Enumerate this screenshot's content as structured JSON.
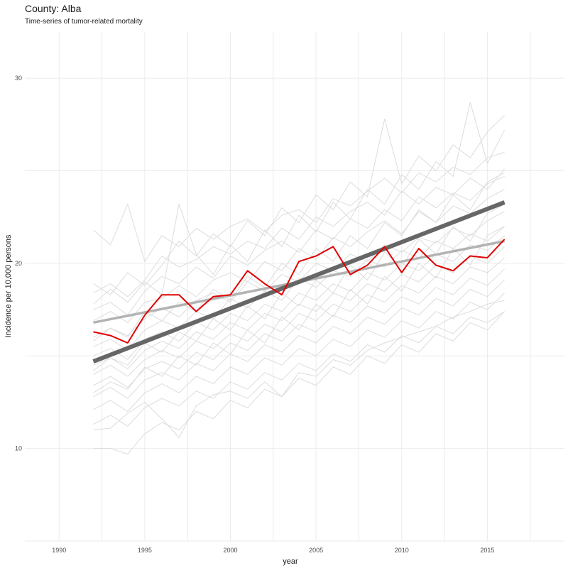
{
  "chart_data": {
    "type": "line",
    "title": "County: Alba",
    "subtitle": "Time-series of tumor-related mortality",
    "xlabel": "year",
    "ylabel": "Incidence per 10,000 persons",
    "xlim": [
      1988,
      2019.5
    ],
    "ylim": [
      5,
      32.5
    ],
    "xticks": [
      1990,
      1995,
      2000,
      2005,
      2010,
      2015
    ],
    "yticks": [
      10,
      20,
      30
    ],
    "grid": true,
    "colors": {
      "highlight": "#e00000",
      "trend_main": "#666666",
      "trend_light": "#b3b3b3",
      "background_series": "#dcdcdc",
      "grid": "#ebebeb"
    },
    "highlight_series": {
      "x": [
        1992,
        1993,
        1994,
        1995,
        1996,
        1997,
        1998,
        1999,
        2000,
        2001,
        2002,
        2003,
        2004,
        2005,
        2006,
        2007,
        2008,
        2009,
        2010,
        2011,
        2012,
        2013,
        2014,
        2015,
        2016
      ],
      "values": [
        16.3,
        16.1,
        15.7,
        17.2,
        18.3,
        18.3,
        17.4,
        18.2,
        18.3,
        19.6,
        18.9,
        18.3,
        20.1,
        20.4,
        20.9,
        19.4,
        19.9,
        20.9,
        19.5,
        20.8,
        19.9,
        19.6,
        20.4,
        20.3,
        21.3
      ]
    },
    "trend_main": {
      "x": [
        1992,
        2016
      ],
      "values": [
        14.7,
        23.3
      ]
    },
    "trend_light": {
      "x": [
        1992,
        2016
      ],
      "values": [
        16.8,
        21.2
      ]
    },
    "background_series": [
      {
        "x_start": 1992,
        "values": [
          21.8,
          21.0,
          23.2,
          20.1,
          21.5,
          20.9,
          21.9,
          21.3,
          22.0,
          22.4,
          21.7,
          22.6,
          22.9,
          22.2,
          23.5,
          23.1,
          23.9,
          24.6,
          23.8,
          24.9,
          24.4,
          25.2,
          24.8,
          25.7,
          26.0
        ]
      },
      {
        "x_start": 1992,
        "values": [
          18.4,
          18.9,
          18.2,
          19.1,
          20.4,
          19.8,
          20.2,
          20.9,
          20.5,
          21.2,
          20.8,
          21.9,
          21.3,
          22.5,
          22.0,
          22.8,
          23.3,
          22.6,
          23.9,
          23.2,
          24.1,
          23.7,
          24.6,
          24.0,
          25.1
        ]
      },
      {
        "x_start": 1992,
        "values": [
          17.5,
          17.9,
          17.2,
          18.5,
          19.3,
          18.9,
          19.8,
          19.2,
          20.4,
          19.9,
          20.7,
          21.2,
          20.6,
          21.8,
          21.3,
          22.4,
          21.9,
          22.9,
          22.3,
          23.6,
          23.0,
          23.8,
          23.4,
          24.3,
          24.7
        ]
      },
      {
        "x_start": 1992,
        "values": [
          16.9,
          17.4,
          16.8,
          17.9,
          18.1,
          18.8,
          18.2,
          19.1,
          19.5,
          19.0,
          20.1,
          19.6,
          20.8,
          20.2,
          21.4,
          20.9,
          21.7,
          22.3,
          21.6,
          22.8,
          22.2,
          23.1,
          22.7,
          23.5,
          24.0
        ]
      },
      {
        "x_start": 1992,
        "values": [
          16.0,
          16.5,
          16.1,
          17.0,
          17.6,
          17.1,
          18.0,
          18.4,
          17.9,
          19.0,
          18.5,
          19.4,
          19.0,
          20.0,
          19.6,
          20.5,
          20.1,
          21.0,
          20.6,
          21.4,
          21.1,
          21.9,
          21.5,
          22.3,
          22.8
        ]
      },
      {
        "x_start": 1992,
        "values": [
          15.5,
          15.9,
          15.3,
          16.4,
          16.9,
          16.5,
          17.4,
          17.0,
          18.1,
          17.6,
          18.5,
          18.0,
          19.2,
          18.7,
          19.6,
          19.3,
          20.2,
          19.8,
          20.7,
          20.3,
          21.2,
          20.8,
          21.6,
          21.2,
          22.0
        ]
      },
      {
        "x_start": 1992,
        "values": [
          15.0,
          15.4,
          14.8,
          15.9,
          16.3,
          15.8,
          16.8,
          16.4,
          17.3,
          16.9,
          17.8,
          17.4,
          18.4,
          18.0,
          18.9,
          18.5,
          19.5,
          19.1,
          20.0,
          19.6,
          20.5,
          20.1,
          21.0,
          20.7,
          21.5
        ]
      },
      {
        "x_start": 1992,
        "values": [
          14.5,
          14.9,
          14.3,
          15.3,
          15.8,
          15.4,
          16.3,
          15.9,
          16.8,
          16.4,
          17.3,
          16.9,
          17.8,
          17.4,
          18.4,
          18.0,
          18.9,
          18.5,
          19.4,
          19.0,
          19.9,
          19.5,
          20.4,
          20.0,
          20.9
        ]
      },
      {
        "x_start": 1992,
        "values": [
          14.0,
          14.5,
          13.9,
          14.8,
          15.3,
          14.9,
          15.8,
          15.4,
          16.2,
          15.8,
          16.7,
          16.3,
          17.3,
          16.9,
          17.8,
          17.4,
          18.3,
          17.9,
          18.8,
          18.4,
          19.3,
          18.9,
          19.8,
          19.5,
          20.3
        ]
      },
      {
        "x_start": 1992,
        "values": [
          13.4,
          13.9,
          13.3,
          14.3,
          14.7,
          14.3,
          15.2,
          14.8,
          15.7,
          15.3,
          16.2,
          15.8,
          16.7,
          16.3,
          17.2,
          16.8,
          17.7,
          17.3,
          18.2,
          17.8,
          18.7,
          18.3,
          19.2,
          18.8,
          19.7
        ]
      },
      {
        "x_start": 1992,
        "values": [
          12.8,
          13.3,
          12.7,
          13.7,
          14.1,
          13.7,
          14.6,
          14.2,
          15.1,
          14.7,
          15.6,
          15.2,
          16.1,
          15.7,
          16.6,
          16.2,
          17.1,
          16.7,
          17.6,
          17.2,
          18.1,
          17.7,
          18.6,
          18.2,
          19.1
        ]
      },
      {
        "x_start": 1992,
        "values": [
          12.1,
          12.6,
          12.0,
          13.0,
          13.5,
          13.0,
          13.9,
          13.5,
          14.4,
          14.0,
          14.9,
          14.5,
          15.4,
          15.0,
          15.9,
          15.5,
          16.4,
          16.0,
          16.9,
          16.5,
          17.4,
          17.0,
          17.9,
          17.5,
          18.4
        ]
      },
      {
        "x_start": 1992,
        "values": [
          11.3,
          11.8,
          11.2,
          12.2,
          12.7,
          12.3,
          13.1,
          12.7,
          13.6,
          13.2,
          14.1,
          13.7,
          14.6,
          14.2,
          15.1,
          14.7,
          15.6,
          15.2,
          16.1,
          15.7,
          16.6,
          16.2,
          17.1,
          16.8,
          17.4
        ]
      },
      {
        "x_start": 1992,
        "values": [
          10.0,
          10.0,
          9.7,
          10.8,
          11.4,
          11.0,
          12.0,
          11.6,
          12.6,
          12.2,
          13.2,
          12.8,
          13.8,
          13.4,
          14.4,
          14.0,
          15.0,
          14.6,
          15.6,
          15.2,
          16.2,
          15.8,
          16.8,
          16.4,
          17.4
        ]
      },
      {
        "x_start": 1992,
        "values": [
          11.0,
          11.1,
          11.9,
          12.5,
          11.6,
          10.6,
          12.3,
          12.9,
          13.1,
          12.7,
          13.6,
          12.8,
          14.1,
          13.9,
          14.8,
          14.5,
          15.3,
          15.7,
          16.0,
          16.3,
          16.6,
          17.1,
          17.4,
          17.8,
          18.0
        ]
      },
      {
        "x_start": 1992,
        "values": [
          18.9,
          18.3,
          19.5,
          18.8,
          19.9,
          21.2,
          20.4,
          21.6,
          20.9,
          22.3,
          21.5,
          23.0,
          22.2,
          23.7,
          22.9,
          24.4,
          23.6,
          27.8,
          24.3,
          25.8,
          25.0,
          26.4,
          25.7,
          27.1,
          28.0
        ]
      },
      {
        "x_start": 1992,
        "values": [
          17.8,
          18.6,
          17.9,
          19.0,
          18.3,
          23.2,
          20.5,
          19.4,
          21.0,
          20.1,
          21.8,
          20.9,
          22.6,
          21.7,
          23.3,
          22.4,
          24.0,
          23.2,
          24.8,
          24.0,
          25.5,
          24.7,
          28.7,
          25.4,
          27.2
        ]
      },
      {
        "x_start": 1992,
        "values": [
          15.8,
          16.5,
          16.0,
          17.4,
          16.9,
          17.9,
          17.4,
          18.6,
          18.0,
          19.3,
          18.7,
          20.0,
          19.4,
          20.8,
          20.1,
          21.5,
          20.8,
          22.2,
          21.5,
          22.9,
          22.2,
          23.7,
          22.9,
          24.4,
          24.9
        ]
      },
      {
        "x_start": 1992,
        "values": [
          14.2,
          14.9,
          14.5,
          15.7,
          15.2,
          16.3,
          15.8,
          17.0,
          16.4,
          17.7,
          17.0,
          18.4,
          17.7,
          19.1,
          18.4,
          19.9,
          19.1,
          20.6,
          19.8,
          21.3,
          20.5,
          22.0,
          21.2,
          22.7,
          23.2
        ]
      },
      {
        "x_start": 1992,
        "values": [
          13.0,
          13.6,
          13.2,
          14.4,
          13.9,
          15.0,
          14.5,
          15.7,
          15.1,
          16.4,
          15.7,
          17.1,
          16.4,
          17.8,
          17.1,
          18.6,
          17.8,
          19.3,
          18.5,
          20.0,
          19.2,
          20.8,
          19.9,
          21.5,
          22.0
        ]
      }
    ]
  }
}
